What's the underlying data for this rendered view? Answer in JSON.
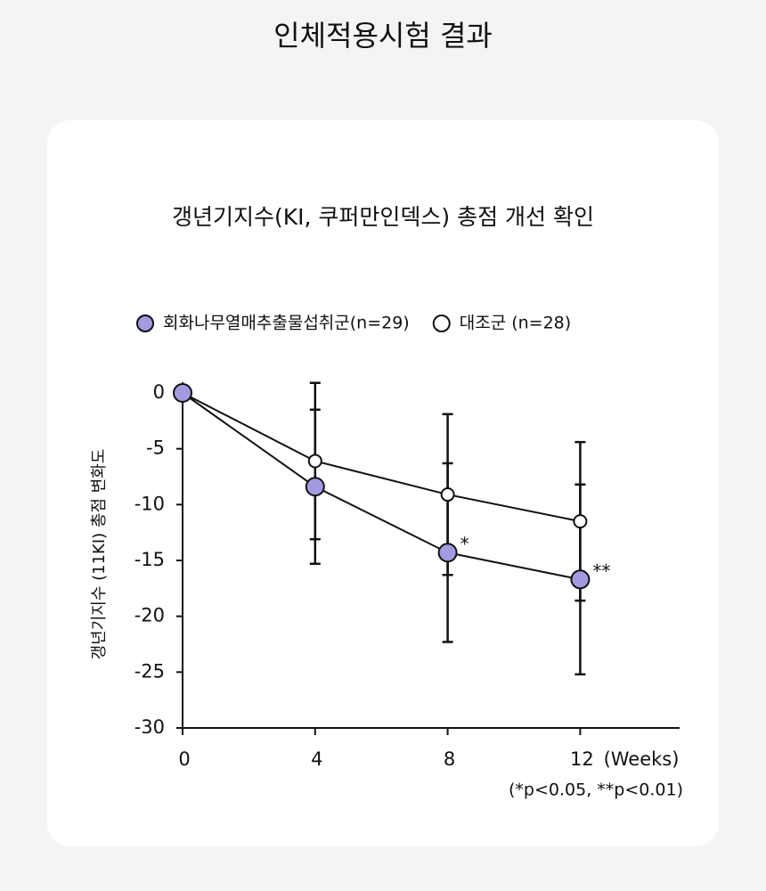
{
  "heading": "인체적용시험 결과",
  "chart_data": {
    "type": "line",
    "title": "갱년기지수(KI, 쿠퍼만인덱스) 총점 개선 확인",
    "x": [
      0,
      4,
      8,
      12
    ],
    "x_label": "(Weeks)",
    "y_label": "갱년기지수 (11KI) 총점 변화도",
    "note": "(*p<0.05, **p<0.01)",
    "series": [
      {
        "name": "회화나무열매추출물섭취군(n=29)",
        "color": "#a39be0",
        "values": [
          0,
          -8.4,
          -14.3,
          -16.7
        ],
        "errors": [
          0,
          6.9,
          8,
          8.5
        ]
      },
      {
        "name": "대조군 (n=28)",
        "color": "#ffffff",
        "values": [
          0,
          -6.1,
          -9.1,
          -11.5
        ],
        "errors": [
          0,
          7,
          7.2,
          7.1
        ]
      }
    ],
    "annotations": [
      {
        "text": "*",
        "x": 8
      },
      {
        "text": "**",
        "x": 12
      }
    ],
    "xlim": [
      0,
      15
    ],
    "xticks": [
      0,
      4,
      8,
      12
    ],
    "ylim": [
      -30,
      0
    ],
    "yticks": [
      0,
      -5,
      -10,
      -15,
      -20,
      -25,
      -30
    ],
    "legend": "top"
  }
}
